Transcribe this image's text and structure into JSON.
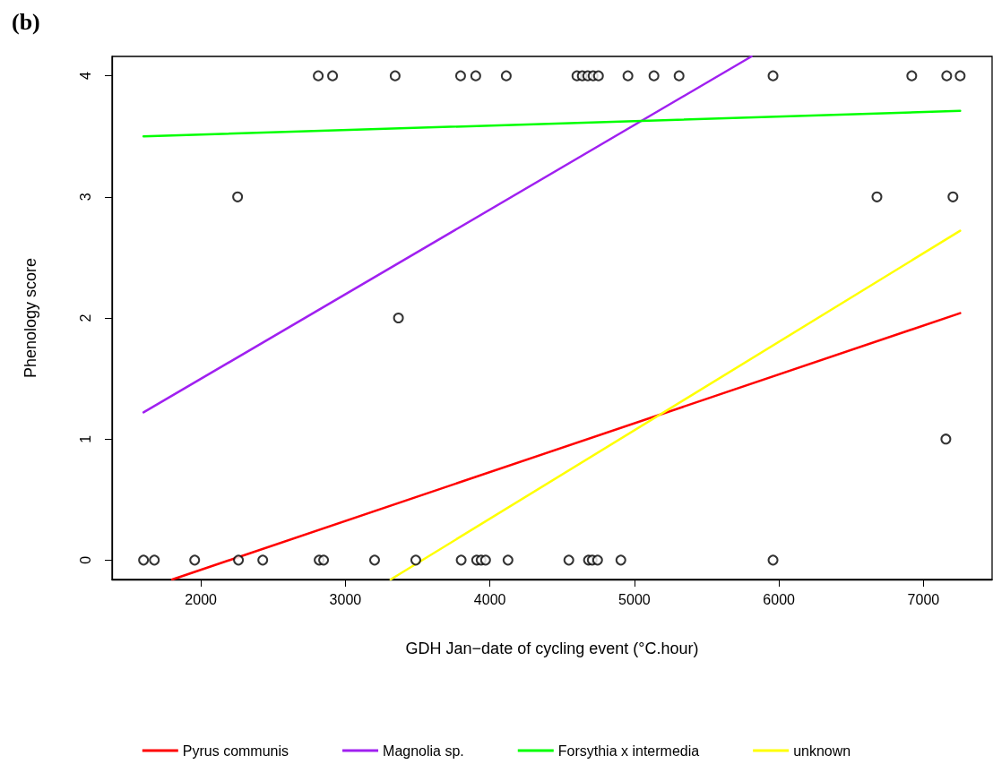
{
  "chart_data": {
    "type": "scatter",
    "title": "(b)",
    "xlabel": "GDH Jan−date of cycling event (°C.hour)",
    "ylabel": "Phenology score",
    "xlim": [
      1385,
      7475
    ],
    "ylim": [
      -0.16,
      4.16
    ],
    "xticks": [
      2000,
      3000,
      4000,
      5000,
      6000,
      7000
    ],
    "yticks": [
      0,
      1,
      2,
      3,
      4
    ],
    "grid": false,
    "legend": "bottom",
    "series": [
      {
        "color": "#000000",
        "marker": "circle",
        "x": [
          2812,
          2911,
          3344,
          3797,
          3902,
          4113,
          4602,
          4639,
          4677,
          4714,
          4751,
          4955,
          5135,
          5309,
          5959,
          6919,
          7161,
          7254,
          2254,
          6678,
          7204,
          3367,
          7155,
          1603,
          1678,
          1957,
          2260,
          2428,
          2818,
          2849,
          3202,
          3487,
          3801,
          3908,
          3939,
          3970,
          4125,
          4546,
          4682,
          4708,
          4745,
          4906,
          5959
        ],
        "values": [
          4,
          4,
          4,
          4,
          4,
          4,
          4,
          4,
          4,
          4,
          4,
          4,
          4,
          4,
          4,
          4,
          4,
          4,
          3,
          3,
          3,
          2,
          1,
          0,
          0,
          0,
          0,
          0,
          0,
          0,
          0,
          0,
          0,
          0,
          0,
          0,
          0,
          0,
          0,
          0,
          0,
          0,
          0
        ]
      },
      {
        "type": "line",
        "name": "Pyrus communis",
        "color": "#ff0000",
        "marker": "none",
        "x": [
          1802,
          7254
        ],
        "values": [
          -0.16,
          2.04
        ]
      },
      {
        "type": "line",
        "name": "Magnolia sp.",
        "color": "#a020f0",
        "marker": "none",
        "x": [
          1603,
          5810
        ],
        "values": [
          1.22,
          4.16
        ]
      },
      {
        "type": "line",
        "name": "Forsythia x intermedia",
        "color": "#00ff00",
        "marker": "none",
        "x": [
          1603,
          7254
        ],
        "values": [
          3.5,
          3.71
        ]
      },
      {
        "type": "line",
        "name": "unknown",
        "color": "#ffff00",
        "marker": "none",
        "x": [
          3313,
          7254
        ],
        "values": [
          -0.16,
          2.72
        ]
      }
    ]
  }
}
